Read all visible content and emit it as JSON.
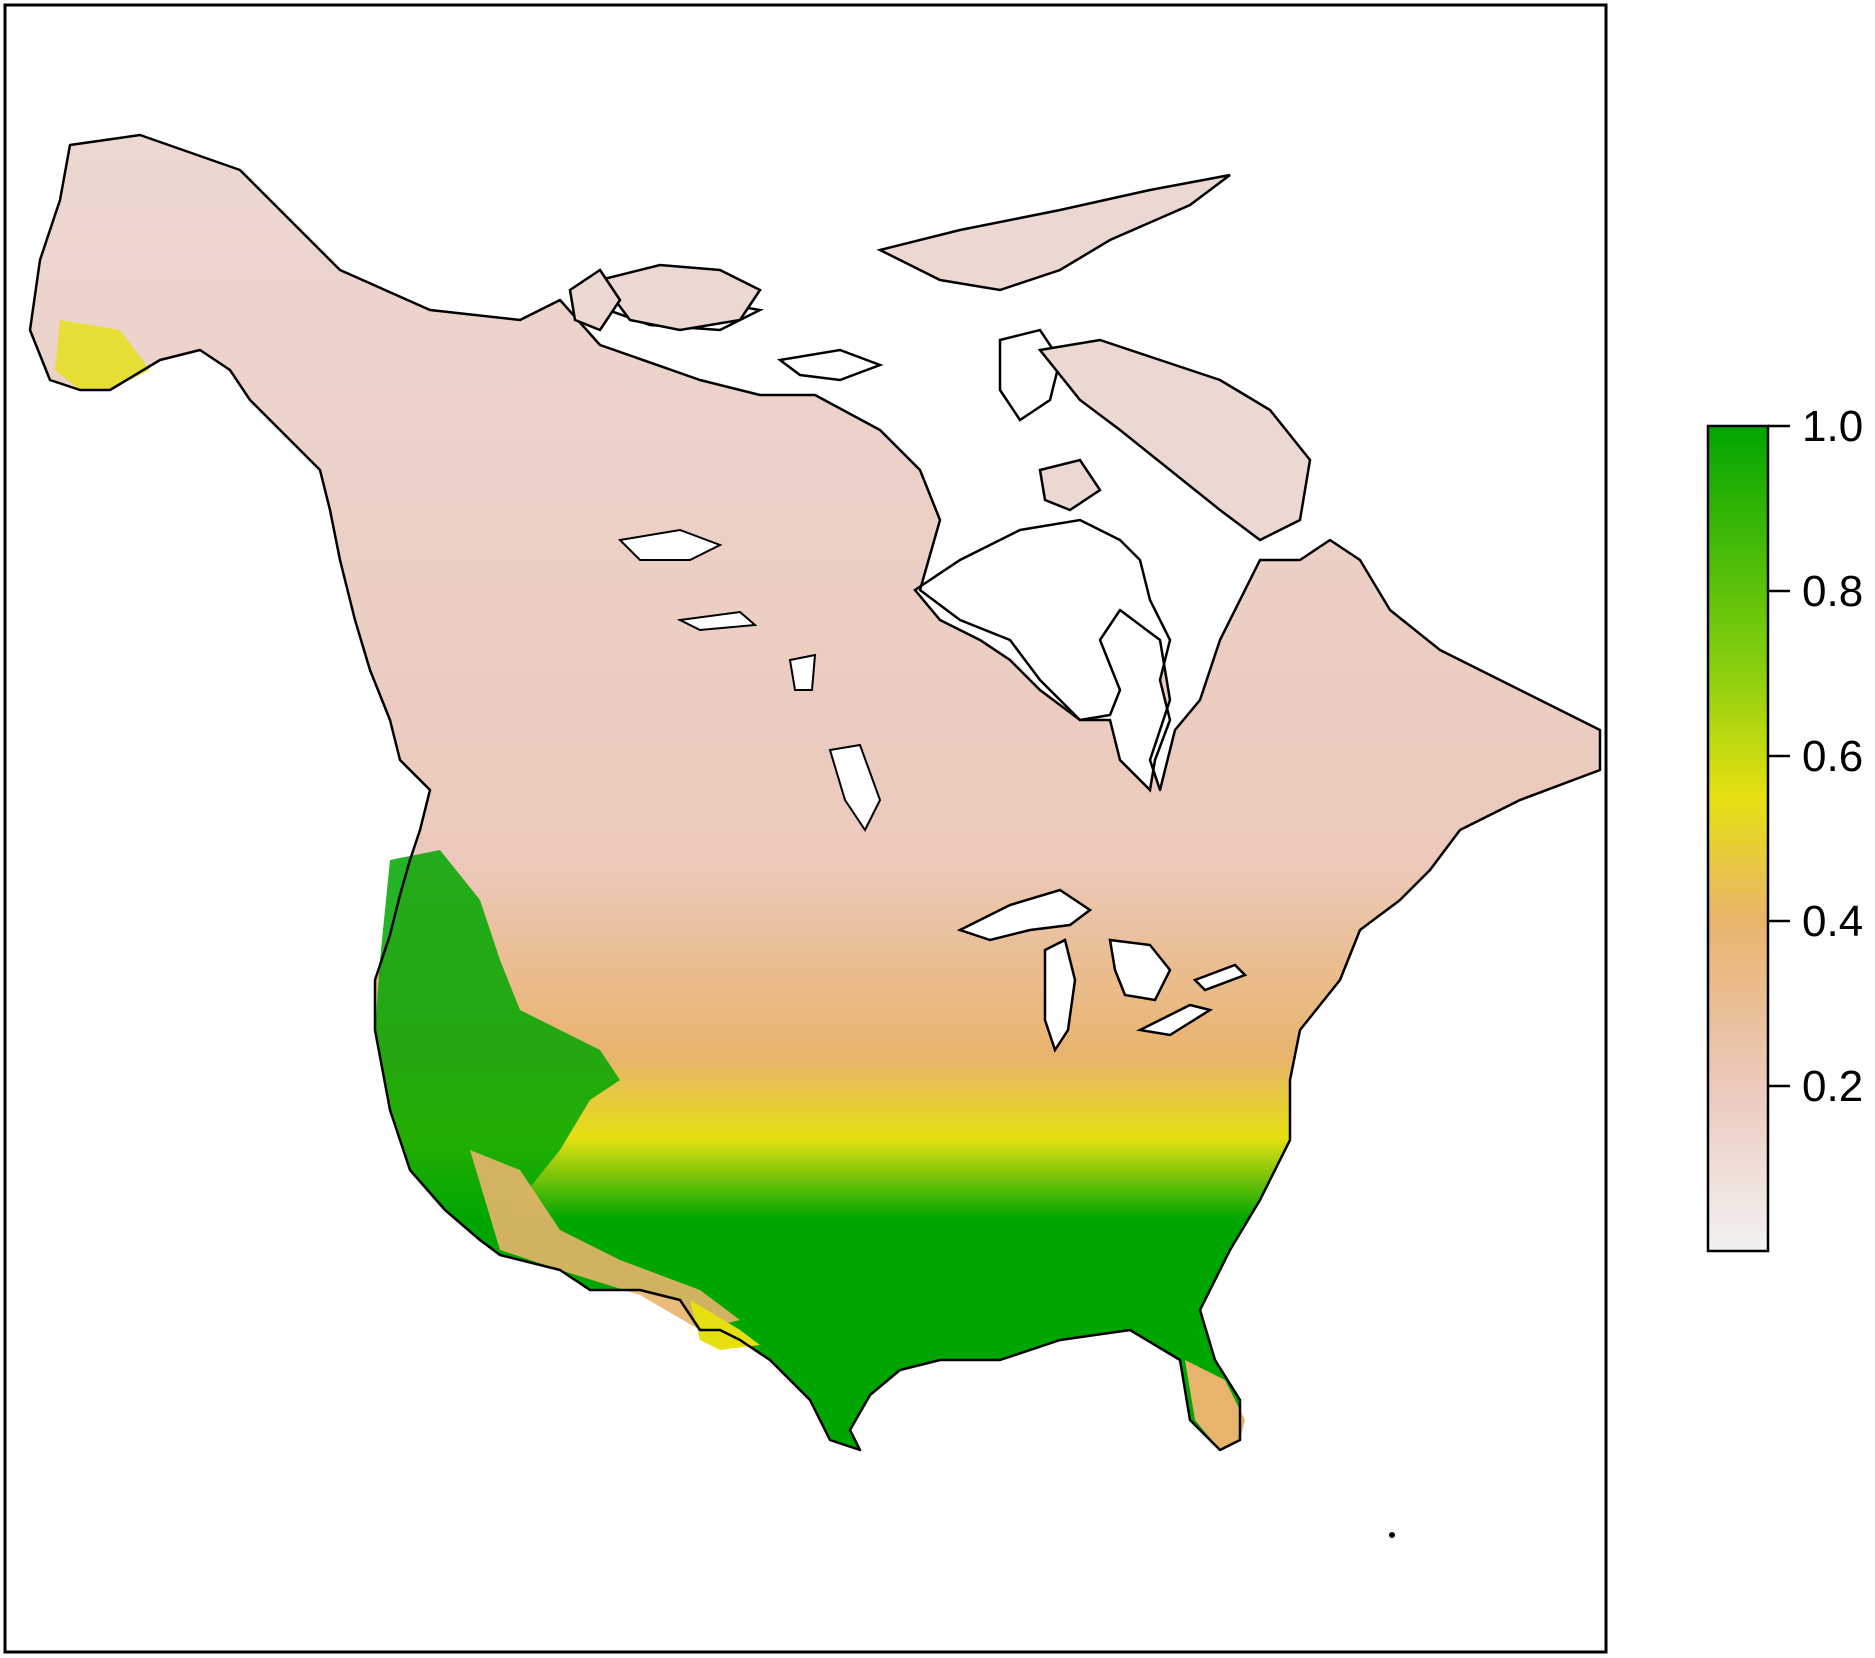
{
  "map": {
    "type": "raster-heatmap",
    "region": "North America (Canada, Alaska, contiguous United States)",
    "value_range": [
      0.0,
      1.0
    ]
  },
  "legend": {
    "ticks": [
      {
        "value": 1.0,
        "label": "1.0"
      },
      {
        "value": 0.8,
        "label": "0.8"
      },
      {
        "value": 0.6,
        "label": "0.6"
      },
      {
        "value": 0.4,
        "label": "0.4"
      },
      {
        "value": 0.2,
        "label": "0.2"
      }
    ],
    "colors": [
      {
        "value": 0.0,
        "color": "#f2f2f2"
      },
      {
        "value": 0.2,
        "color": "#ecc9bc"
      },
      {
        "value": 0.4,
        "color": "#e8b46c"
      },
      {
        "value": 0.55,
        "color": "#e6e011"
      },
      {
        "value": 0.7,
        "color": "#8cd00f"
      },
      {
        "value": 1.0,
        "color": "#00a600"
      }
    ]
  },
  "colors": {
    "frame": "#000000",
    "coastline": "#000000",
    "background": "#ffffff"
  }
}
